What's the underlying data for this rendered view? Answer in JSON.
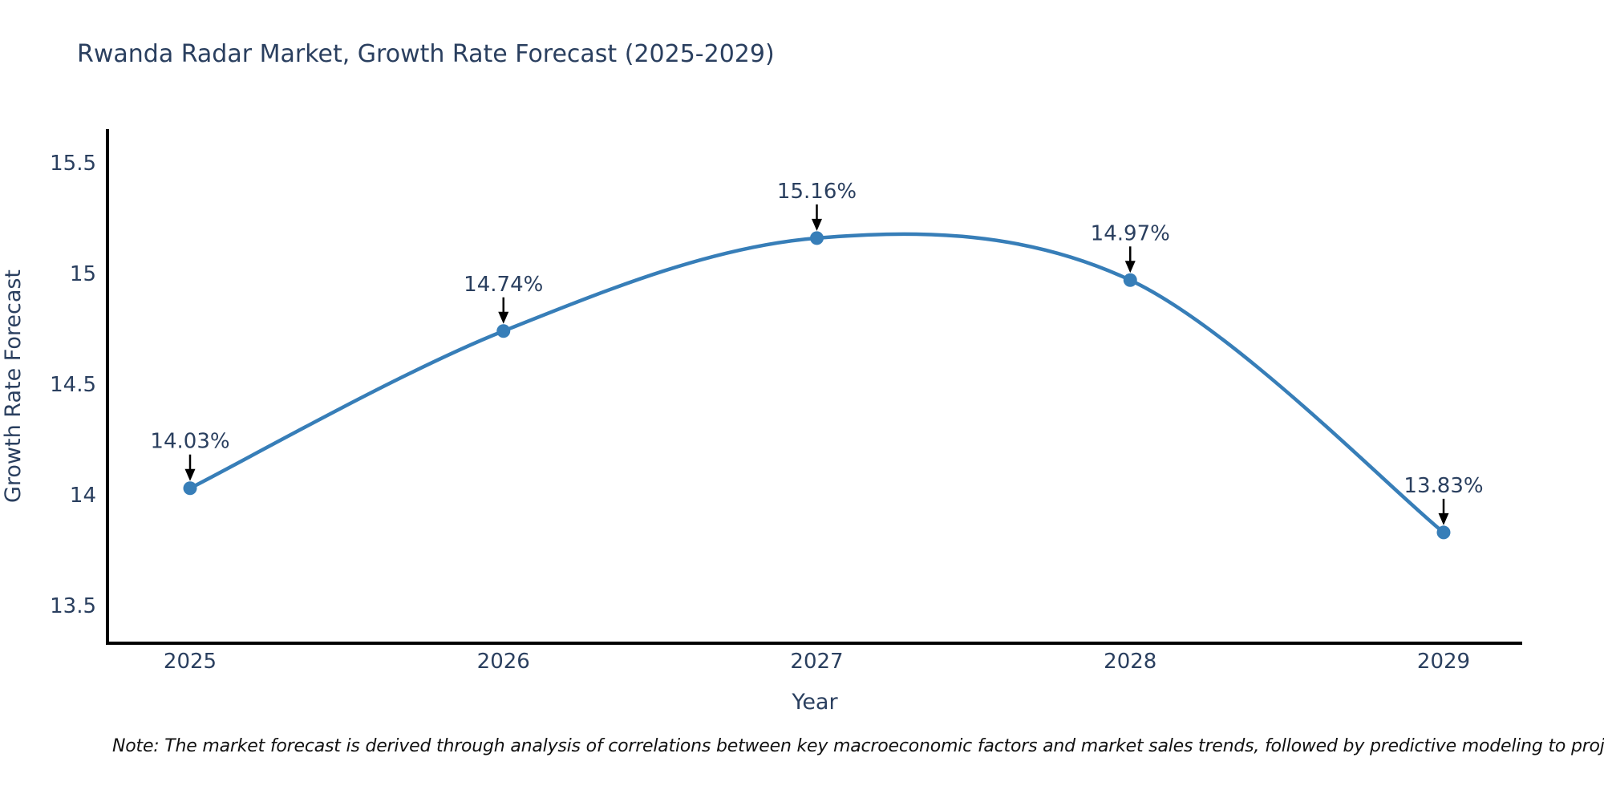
{
  "title": "Rwanda Radar Market, Growth Rate Forecast (2025-2029)",
  "note": "Note: The market forecast is derived through analysis of correlations between key macroeconomic factors and market sales trends, followed by predictive modeling to project future sales.",
  "chart_data": {
    "type": "line",
    "line_shape": "spline",
    "grid": false,
    "title": "Rwanda Radar Market, Growth Rate Forecast (2025-2029)",
    "xlabel": "Year",
    "ylabel": "Growth Rate Forecast",
    "x": [
      2025,
      2026,
      2027,
      2028,
      2029
    ],
    "xtick_labels": [
      "2025",
      "2026",
      "2027",
      "2028",
      "2029"
    ],
    "series": [
      {
        "name": "Growth Rate Forecast",
        "values": [
          14.03,
          14.74,
          15.16,
          14.97,
          13.83
        ]
      }
    ],
    "point_labels": [
      "14.03%",
      "14.74%",
      "15.16%",
      "14.97%",
      "13.83%"
    ],
    "yticks": [
      13.5,
      14,
      14.5,
      15,
      15.5
    ],
    "ytick_labels": [
      "13.5",
      "14",
      "14.5",
      "15",
      "15.5"
    ],
    "ylim": [
      13.32,
      15.66
    ],
    "colors": {
      "line": "#377eb8",
      "marker": "#377eb8",
      "text": "#2a3f5f",
      "axis": "#000000",
      "annotation_arrow": "#000000",
      "note_text": "#111111"
    }
  }
}
